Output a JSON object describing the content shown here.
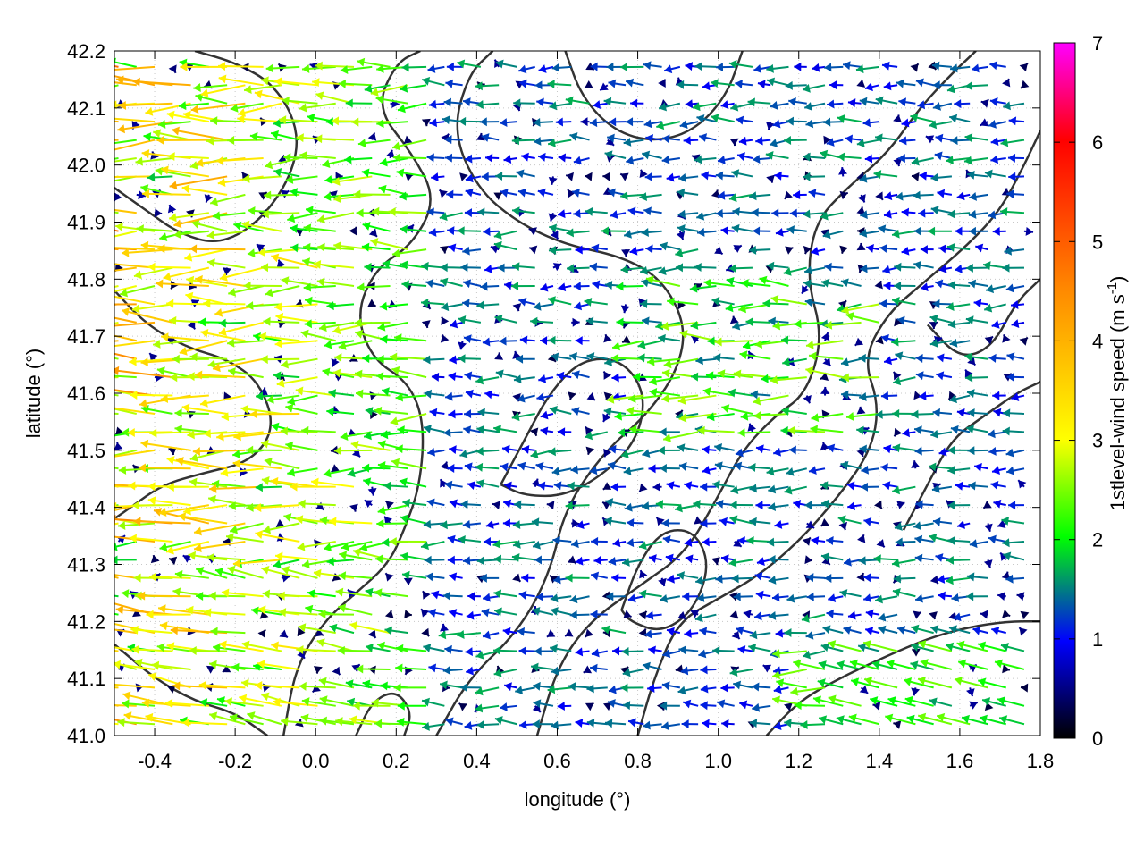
{
  "chart_data": {
    "type": "vector-field",
    "title": "",
    "xlabel": "longitude (°)",
    "ylabel": "latitude (°)",
    "xlim": [
      -0.5,
      1.8
    ],
    "ylim": [
      41.0,
      42.2
    ],
    "xticks": [
      -0.4,
      -0.2,
      0.0,
      0.2,
      0.4,
      0.6,
      0.8,
      1.0,
      1.2,
      1.4,
      1.6,
      1.8
    ],
    "xtick_labels": [
      "-0.4",
      "-0.2",
      "0.0",
      "0.2",
      "0.4",
      "0.6",
      "0.8",
      "1.0",
      "1.2",
      "1.4",
      "1.6",
      "1.8"
    ],
    "yticks": [
      41.0,
      41.1,
      41.2,
      41.3,
      41.4,
      41.5,
      41.6,
      41.7,
      41.8,
      41.9,
      42.0,
      42.1,
      42.2
    ],
    "ytick_labels": [
      "41.0",
      "41.1",
      "41.2",
      "41.3",
      "41.4",
      "41.5",
      "41.6",
      "41.7",
      "41.8",
      "41.9",
      "42.0",
      "42.1",
      "42.2"
    ],
    "grid": true,
    "colorbar": {
      "label_main": "1stlevel-wind speed (m s",
      "label_sup": "-1",
      "label_close": ")",
      "range": [
        0,
        7
      ],
      "ticks": [
        0,
        1,
        2,
        3,
        4,
        5,
        6,
        7
      ],
      "tick_labels": [
        "0",
        "1",
        "2",
        "3",
        "4",
        "5",
        "6",
        "7"
      ],
      "colors": [
        "#000000",
        "#0000ff",
        "#00ff00",
        "#ffff00",
        "#ff8c00",
        "#ff0000",
        "#ff00ff"
      ]
    },
    "contour_color": "#333333",
    "contour_lines": [
      [
        [
          -0.08,
          41.0
        ],
        [
          -0.05,
          41.12
        ],
        [
          0.02,
          41.2
        ],
        [
          0.1,
          41.25
        ],
        [
          0.18,
          41.3
        ],
        [
          0.22,
          41.36
        ],
        [
          0.26,
          41.44
        ],
        [
          0.27,
          41.55
        ],
        [
          0.23,
          41.62
        ],
        [
          0.14,
          41.66
        ],
        [
          0.1,
          41.74
        ],
        [
          0.15,
          41.82
        ],
        [
          0.24,
          41.86
        ],
        [
          0.3,
          41.94
        ],
        [
          0.24,
          42.02
        ],
        [
          0.15,
          42.1
        ],
        [
          0.2,
          42.18
        ],
        [
          0.26,
          42.2
        ]
      ],
      [
        [
          0.3,
          41.0
        ],
        [
          0.38,
          41.1
        ],
        [
          0.5,
          41.18
        ],
        [
          0.58,
          41.28
        ],
        [
          0.62,
          41.4
        ],
        [
          0.72,
          41.5
        ],
        [
          0.82,
          41.56
        ],
        [
          0.9,
          41.64
        ],
        [
          0.92,
          41.72
        ],
        [
          0.86,
          41.8
        ],
        [
          0.76,
          41.84
        ],
        [
          0.62,
          41.86
        ],
        [
          0.5,
          41.9
        ],
        [
          0.4,
          41.96
        ],
        [
          0.34,
          42.06
        ],
        [
          0.38,
          42.16
        ],
        [
          0.44,
          42.2
        ]
      ],
      [
        [
          0.55,
          41.0
        ],
        [
          0.6,
          41.12
        ],
        [
          0.68,
          41.2
        ],
        [
          0.8,
          41.26
        ],
        [
          0.92,
          41.32
        ],
        [
          1.0,
          41.42
        ],
        [
          1.06,
          41.5
        ],
        [
          1.14,
          41.56
        ],
        [
          1.22,
          41.6
        ],
        [
          1.26,
          41.7
        ],
        [
          1.22,
          41.8
        ],
        [
          1.24,
          41.9
        ],
        [
          1.32,
          41.96
        ],
        [
          1.42,
          42.02
        ],
        [
          1.5,
          42.1
        ],
        [
          1.58,
          42.16
        ],
        [
          1.64,
          42.2
        ]
      ],
      [
        [
          0.8,
          41.0
        ],
        [
          0.84,
          41.1
        ],
        [
          0.9,
          41.2
        ],
        [
          1.0,
          41.24
        ],
        [
          1.1,
          41.28
        ],
        [
          1.2,
          41.34
        ],
        [
          1.3,
          41.42
        ],
        [
          1.38,
          41.5
        ],
        [
          1.4,
          41.58
        ],
        [
          1.36,
          41.66
        ],
        [
          1.42,
          41.74
        ],
        [
          1.52,
          41.8
        ],
        [
          1.62,
          41.86
        ],
        [
          1.7,
          41.92
        ],
        [
          1.76,
          42.0
        ],
        [
          1.8,
          42.06
        ]
      ],
      [
        [
          1.12,
          41.0
        ],
        [
          1.2,
          41.06
        ],
        [
          1.3,
          41.1
        ],
        [
          1.42,
          41.14
        ],
        [
          1.52,
          41.17
        ],
        [
          1.62,
          41.19
        ],
        [
          1.72,
          41.2
        ],
        [
          1.8,
          41.2
        ]
      ],
      [
        [
          -0.5,
          41.78
        ],
        [
          -0.42,
          41.72
        ],
        [
          -0.32,
          41.68
        ],
        [
          -0.22,
          41.66
        ],
        [
          -0.14,
          41.62
        ],
        [
          -0.1,
          41.54
        ],
        [
          -0.16,
          41.48
        ],
        [
          -0.28,
          41.46
        ],
        [
          -0.38,
          41.44
        ],
        [
          -0.46,
          41.4
        ],
        [
          -0.5,
          41.38
        ]
      ],
      [
        [
          -0.5,
          41.96
        ],
        [
          -0.42,
          41.92
        ],
        [
          -0.34,
          41.88
        ],
        [
          -0.24,
          41.86
        ],
        [
          -0.14,
          41.9
        ],
        [
          -0.06,
          41.98
        ],
        [
          -0.04,
          42.06
        ],
        [
          -0.1,
          42.14
        ],
        [
          -0.2,
          42.18
        ],
        [
          -0.3,
          42.2
        ]
      ],
      [
        [
          0.46,
          41.44
        ],
        [
          0.52,
          41.52
        ],
        [
          0.58,
          41.6
        ],
        [
          0.66,
          41.66
        ],
        [
          0.76,
          41.66
        ],
        [
          0.82,
          41.6
        ],
        [
          0.8,
          41.52
        ],
        [
          0.72,
          41.46
        ],
        [
          0.62,
          41.42
        ],
        [
          0.52,
          41.42
        ],
        [
          0.46,
          41.44
        ]
      ],
      [
        [
          0.62,
          42.2
        ],
        [
          0.66,
          42.12
        ],
        [
          0.74,
          42.06
        ],
        [
          0.84,
          42.04
        ],
        [
          0.94,
          42.06
        ],
        [
          1.02,
          42.12
        ],
        [
          1.06,
          42.2
        ]
      ],
      [
        [
          0.76,
          41.22
        ],
        [
          0.8,
          41.3
        ],
        [
          0.86,
          41.36
        ],
        [
          0.94,
          41.36
        ],
        [
          0.98,
          41.3
        ],
        [
          0.94,
          41.22
        ],
        [
          0.86,
          41.18
        ],
        [
          0.78,
          41.2
        ],
        [
          0.76,
          41.22
        ]
      ],
      [
        [
          -0.5,
          41.16
        ],
        [
          -0.4,
          41.1
        ],
        [
          -0.3,
          41.06
        ],
        [
          -0.2,
          41.04
        ],
        [
          -0.12,
          41.0
        ]
      ],
      [
        [
          1.46,
          41.36
        ],
        [
          1.52,
          41.44
        ],
        [
          1.58,
          41.52
        ],
        [
          1.66,
          41.56
        ],
        [
          1.74,
          41.6
        ],
        [
          1.8,
          41.62
        ]
      ],
      [
        [
          1.52,
          41.72
        ],
        [
          1.6,
          41.66
        ],
        [
          1.68,
          41.68
        ],
        [
          1.74,
          41.76
        ],
        [
          1.8,
          41.8
        ]
      ],
      [
        [
          0.1,
          41.0
        ],
        [
          0.14,
          41.06
        ],
        [
          0.2,
          41.08
        ],
        [
          0.24,
          41.04
        ],
        [
          0.22,
          41.0
        ]
      ]
    ],
    "speed_note": "arrows point in wind direction; length and color encode speed (m s-1)"
  }
}
